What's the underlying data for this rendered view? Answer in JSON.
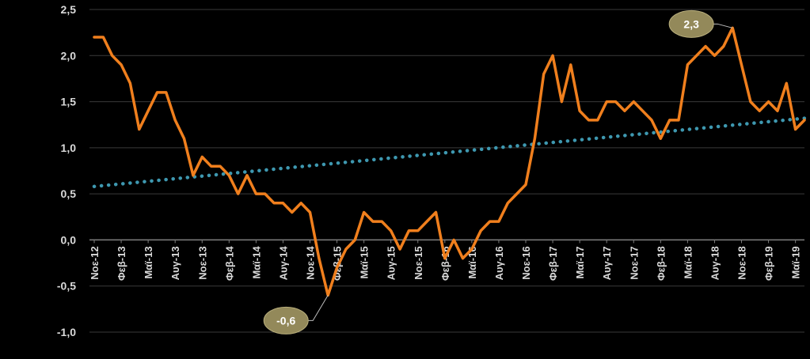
{
  "chart_data": {
    "type": "line",
    "title": "",
    "xlabel": "",
    "ylabel": "",
    "ylim": [
      -1.0,
      2.5
    ],
    "yticks": [
      -1.0,
      -0.5,
      0.0,
      0.5,
      1.0,
      1.5,
      2.0,
      2.5
    ],
    "ytick_labels": [
      "-1,0",
      "-0,5",
      "0,0",
      "0,5",
      "1,0",
      "1,5",
      "2,0",
      "2,5"
    ],
    "grid": "horizontal",
    "legend": "none",
    "x_tick_labels": [
      "Νοε-12",
      "Φεβ-13",
      "Μαϊ-13",
      "Αυγ-13",
      "Νοε-13",
      "Φεβ-14",
      "Μαϊ-14",
      "Αυγ-14",
      "Νοε-14",
      "Φεβ-15",
      "Μαϊ-15",
      "Αυγ-15",
      "Νοε-15",
      "Φεβ-16",
      "Μαϊ-16",
      "Αυγ-16",
      "Νοε-16",
      "Φεβ-17",
      "Μαϊ-17",
      "Αυγ-17",
      "Νοε-17",
      "Φεβ-18",
      "Μαϊ-18",
      "Αυγ-18",
      "Νοε-18",
      "Φεβ-19",
      "Μαϊ-19"
    ],
    "x_tick_every": 3,
    "series": [
      {
        "values": [
          2.2,
          2.2,
          2.0,
          1.9,
          1.7,
          1.2,
          1.4,
          1.6,
          1.6,
          1.3,
          1.1,
          0.7,
          0.9,
          0.8,
          0.8,
          0.7,
          0.5,
          0.7,
          0.5,
          0.5,
          0.4,
          0.4,
          0.3,
          0.4,
          0.3,
          -0.2,
          -0.6,
          -0.3,
          -0.1,
          0.0,
          0.3,
          0.2,
          0.2,
          0.1,
          -0.1,
          0.1,
          0.1,
          0.2,
          0.3,
          -0.2,
          0.0,
          -0.2,
          -0.1,
          0.1,
          0.2,
          0.2,
          0.4,
          0.5,
          0.6,
          1.1,
          1.8,
          2.0,
          1.5,
          1.9,
          1.4,
          1.3,
          1.3,
          1.5,
          1.5,
          1.4,
          1.5,
          1.4,
          1.3,
          1.1,
          1.3,
          1.3,
          1.9,
          2.0,
          2.1,
          2.0,
          2.1,
          2.3,
          1.9,
          1.5,
          1.4,
          1.5,
          1.4,
          1.7,
          1.2,
          1.3
        ],
        "color": "#f07f1d"
      },
      {
        "type": "trendline",
        "style": "dotted",
        "start": 0.58,
        "end": 1.32,
        "color": "#3e98b0"
      }
    ],
    "annotations": [
      {
        "label": "2,3",
        "index": 71,
        "value": 2.3
      },
      {
        "label": "-0,6",
        "index": 26,
        "value": -0.6
      }
    ]
  }
}
